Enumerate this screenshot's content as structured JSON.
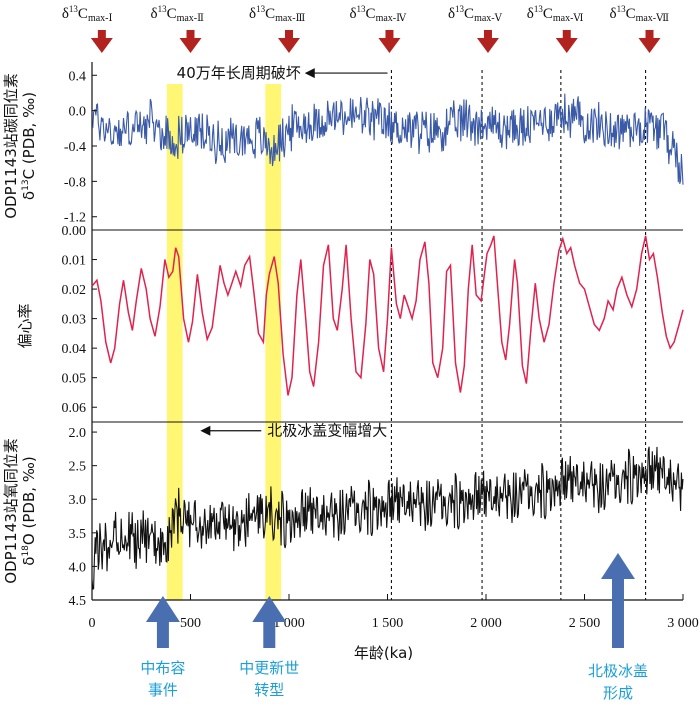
{
  "chart_data": {
    "type": "line",
    "xlabel": "年龄(ka)",
    "xlim": [
      0,
      3000
    ],
    "x_ticks": [
      "0",
      "500",
      "1 000",
      "1 500",
      "2 000",
      "2 500",
      "3 000"
    ],
    "x_tick_values": [
      0,
      500,
      1000,
      1500,
      2000,
      2500,
      3000
    ],
    "delta13C_max_markers": [
      {
        "prefix": "δ",
        "sup": "13",
        "base": "C",
        "sub": "max-Ⅰ",
        "x": 50
      },
      {
        "prefix": "δ",
        "sup": "13",
        "base": "C",
        "sub": "max-Ⅱ",
        "x": 500
      },
      {
        "prefix": "δ",
        "sup": "13",
        "base": "C",
        "sub": "max-Ⅲ",
        "x": 1000
      },
      {
        "prefix": "δ",
        "sup": "13",
        "base": "C",
        "sub": "max-Ⅳ",
        "x": 1510
      },
      {
        "prefix": "δ",
        "sup": "13",
        "base": "C",
        "sub": "max-Ⅴ",
        "x": 2010
      },
      {
        "prefix": "δ",
        "sup": "13",
        "base": "C",
        "sub": "max-Ⅵ",
        "x": 2410
      },
      {
        "prefix": "δ",
        "sup": "13",
        "base": "C",
        "sub": "max-Ⅶ",
        "x": 2830
      }
    ],
    "dashed_lines_x": [
      1520,
      1980,
      2380,
      2810
    ],
    "highlight_bands": [
      [
        380,
        460
      ],
      [
        880,
        960
      ]
    ],
    "panels": [
      {
        "id": "d13C",
        "ylabel_line1": "ODP1143站碳同位素",
        "ylabel_line2_prefix": "δ",
        "ylabel_line2_sup": "13",
        "ylabel_line2_rest": "C (PDB, ‰)",
        "ylim": [
          0.55,
          -1.35
        ],
        "y_ticks": [
          "0.4",
          "0.0",
          "-0.4",
          "-0.8",
          "-1.2"
        ],
        "y_tick_values": [
          0.4,
          0.0,
          -0.4,
          -0.8,
          -1.2
        ],
        "color": "#3a5aa8",
        "annotation": "40万年长周期破坏",
        "annotation_arrow_from_x": 1500,
        "annotation_arrow_to_x": 1080,
        "annotation_y": 0.47,
        "series_name": "",
        "anchors": [
          [
            0,
            -0.05
          ],
          [
            100,
            -0.25
          ],
          [
            200,
            -0.2
          ],
          [
            300,
            -0.15
          ],
          [
            380,
            -0.3
          ],
          [
            420,
            -0.35
          ],
          [
            460,
            -0.25
          ],
          [
            550,
            -0.25
          ],
          [
            650,
            -0.35
          ],
          [
            750,
            -0.3
          ],
          [
            850,
            -0.3
          ],
          [
            920,
            -0.45
          ],
          [
            1000,
            -0.2
          ],
          [
            1100,
            -0.15
          ],
          [
            1200,
            -0.1
          ],
          [
            1300,
            -0.05
          ],
          [
            1400,
            -0.1
          ],
          [
            1500,
            -0.15
          ],
          [
            1600,
            -0.2
          ],
          [
            1700,
            -0.25
          ],
          [
            1800,
            -0.2
          ],
          [
            1900,
            -0.1
          ],
          [
            2000,
            -0.15
          ],
          [
            2100,
            -0.2
          ],
          [
            2200,
            -0.2
          ],
          [
            2300,
            -0.1
          ],
          [
            2400,
            -0.05
          ],
          [
            2500,
            -0.1
          ],
          [
            2600,
            -0.2
          ],
          [
            2700,
            -0.2
          ],
          [
            2800,
            -0.15
          ],
          [
            2900,
            -0.2
          ],
          [
            3000,
            -0.7
          ]
        ],
        "amplitude": 0.22
      },
      {
        "id": "ecc",
        "ylabel_line1": "偏心率",
        "ylim": [
          0.0,
          0.065
        ],
        "y_ticks": [
          "0.06",
          "0.05",
          "0.04",
          "0.03",
          "0.02",
          "0.01",
          "0.00"
        ],
        "y_tick_values": [
          0.06,
          0.05,
          0.04,
          0.03,
          0.02,
          0.01,
          0.0
        ],
        "color": "#e0234e",
        "series_name": "",
        "points": [
          [
            0,
            0.019
          ],
          [
            25,
            0.017
          ],
          [
            45,
            0.024
          ],
          [
            70,
            0.038
          ],
          [
            95,
            0.045
          ],
          [
            115,
            0.04
          ],
          [
            140,
            0.025
          ],
          [
            160,
            0.017
          ],
          [
            185,
            0.028
          ],
          [
            205,
            0.034
          ],
          [
            225,
            0.024
          ],
          [
            250,
            0.013
          ],
          [
            275,
            0.02
          ],
          [
            295,
            0.03
          ],
          [
            320,
            0.036
          ],
          [
            345,
            0.026
          ],
          [
            370,
            0.01
          ],
          [
            390,
            0.016
          ],
          [
            410,
            0.014
          ],
          [
            425,
            0.006
          ],
          [
            440,
            0.009
          ],
          [
            465,
            0.03
          ],
          [
            490,
            0.038
          ],
          [
            510,
            0.031
          ],
          [
            535,
            0.015
          ],
          [
            560,
            0.028
          ],
          [
            585,
            0.037
          ],
          [
            610,
            0.033
          ],
          [
            635,
            0.02
          ],
          [
            650,
            0.012
          ],
          [
            670,
            0.018
          ],
          [
            690,
            0.022
          ],
          [
            710,
            0.018
          ],
          [
            730,
            0.014
          ],
          [
            755,
            0.019
          ],
          [
            775,
            0.012
          ],
          [
            800,
            0.009
          ],
          [
            820,
            0.02
          ],
          [
            845,
            0.035
          ],
          [
            870,
            0.038
          ],
          [
            885,
            0.022
          ],
          [
            900,
            0.015
          ],
          [
            925,
            0.009
          ],
          [
            945,
            0.018
          ],
          [
            970,
            0.042
          ],
          [
            995,
            0.056
          ],
          [
            1015,
            0.05
          ],
          [
            1040,
            0.022
          ],
          [
            1060,
            0.01
          ],
          [
            1085,
            0.03
          ],
          [
            1105,
            0.048
          ],
          [
            1125,
            0.053
          ],
          [
            1150,
            0.038
          ],
          [
            1175,
            0.012
          ],
          [
            1200,
            0.005
          ],
          [
            1225,
            0.03
          ],
          [
            1245,
            0.034
          ],
          [
            1270,
            0.02
          ],
          [
            1290,
            0.005
          ],
          [
            1315,
            0.03
          ],
          [
            1340,
            0.048
          ],
          [
            1365,
            0.05
          ],
          [
            1390,
            0.032
          ],
          [
            1410,
            0.01
          ],
          [
            1430,
            0.015
          ],
          [
            1455,
            0.04
          ],
          [
            1480,
            0.048
          ],
          [
            1500,
            0.03
          ],
          [
            1520,
            0.006
          ],
          [
            1545,
            0.025
          ],
          [
            1565,
            0.03
          ],
          [
            1585,
            0.022
          ],
          [
            1605,
            0.026
          ],
          [
            1625,
            0.03
          ],
          [
            1645,
            0.024
          ],
          [
            1665,
            0.01
          ],
          [
            1690,
            0.004
          ],
          [
            1710,
            0.018
          ],
          [
            1730,
            0.045
          ],
          [
            1755,
            0.05
          ],
          [
            1780,
            0.04
          ],
          [
            1800,
            0.014
          ],
          [
            1820,
            0.012
          ],
          [
            1845,
            0.045
          ],
          [
            1870,
            0.055
          ],
          [
            1890,
            0.046
          ],
          [
            1910,
            0.02
          ],
          [
            1930,
            0.005
          ],
          [
            1950,
            0.022
          ],
          [
            1975,
            0.024
          ],
          [
            1990,
            0.016
          ],
          [
            2005,
            0.008
          ],
          [
            2025,
            0.005
          ],
          [
            2040,
            0.002
          ],
          [
            2060,
            0.02
          ],
          [
            2080,
            0.038
          ],
          [
            2100,
            0.044
          ],
          [
            2120,
            0.032
          ],
          [
            2145,
            0.01
          ],
          [
            2160,
            0.018
          ],
          [
            2185,
            0.046
          ],
          [
            2205,
            0.052
          ],
          [
            2230,
            0.032
          ],
          [
            2250,
            0.018
          ],
          [
            2270,
            0.03
          ],
          [
            2295,
            0.038
          ],
          [
            2320,
            0.032
          ],
          [
            2345,
            0.018
          ],
          [
            2370,
            0.007
          ],
          [
            2390,
            0.003
          ],
          [
            2410,
            0.008
          ],
          [
            2430,
            0.006
          ],
          [
            2450,
            0.012
          ],
          [
            2475,
            0.018
          ],
          [
            2500,
            0.02
          ],
          [
            2525,
            0.026
          ],
          [
            2550,
            0.032
          ],
          [
            2575,
            0.034
          ],
          [
            2600,
            0.03
          ],
          [
            2620,
            0.024
          ],
          [
            2645,
            0.027
          ],
          [
            2665,
            0.02
          ],
          [
            2690,
            0.016
          ],
          [
            2715,
            0.022
          ],
          [
            2740,
            0.026
          ],
          [
            2765,
            0.02
          ],
          [
            2790,
            0.008
          ],
          [
            2810,
            0.002
          ],
          [
            2830,
            0.01
          ],
          [
            2850,
            0.008
          ],
          [
            2870,
            0.016
          ],
          [
            2895,
            0.028
          ],
          [
            2915,
            0.036
          ],
          [
            2935,
            0.04
          ],
          [
            2955,
            0.038
          ],
          [
            2980,
            0.032
          ],
          [
            3000,
            0.027
          ]
        ]
      },
      {
        "id": "d18O",
        "ylabel_line1": "ODP1143站氧同位素",
        "ylabel_line2_prefix": "δ",
        "ylabel_line2_sup": "18",
        "ylabel_line2_rest": "O (PDB, ‰)",
        "ylim": [
          1.85,
          4.5
        ],
        "y_ticks": [
          "2.0",
          "2.5",
          "3.0",
          "3.5",
          "4.0",
          "4.5"
        ],
        "y_tick_values": [
          2.0,
          2.5,
          3.0,
          3.5,
          4.0,
          4.5
        ],
        "color": "#111111",
        "annotation": "北极冰盖变幅增大",
        "annotation_arrow_from_x": 910,
        "annotation_arrow_to_x": 550,
        "annotation_y": 1.95,
        "series_name": "",
        "anchors": [
          [
            0,
            3.9
          ],
          [
            100,
            3.5
          ],
          [
            200,
            3.6
          ],
          [
            300,
            3.6
          ],
          [
            400,
            3.5
          ],
          [
            440,
            3.2
          ],
          [
            500,
            3.4
          ],
          [
            600,
            3.4
          ],
          [
            700,
            3.4
          ],
          [
            800,
            3.3
          ],
          [
            900,
            3.2
          ],
          [
            1000,
            3.3
          ],
          [
            1100,
            3.2
          ],
          [
            1200,
            3.2
          ],
          [
            1300,
            3.1
          ],
          [
            1400,
            3.1
          ],
          [
            1500,
            3.1
          ],
          [
            1600,
            3.0
          ],
          [
            1700,
            3.0
          ],
          [
            1800,
            3.0
          ],
          [
            1900,
            3.0
          ],
          [
            2000,
            2.95
          ],
          [
            2100,
            2.9
          ],
          [
            2200,
            2.85
          ],
          [
            2300,
            2.85
          ],
          [
            2400,
            2.75
          ],
          [
            2500,
            2.7
          ],
          [
            2600,
            2.75
          ],
          [
            2700,
            2.65
          ],
          [
            2800,
            2.6
          ],
          [
            2900,
            2.6
          ],
          [
            3000,
            2.8
          ]
        ],
        "amplitude": 0.38
      }
    ],
    "events": [
      {
        "label_line1": "中布容",
        "label_line2": "事件",
        "x": 360
      },
      {
        "label_line1": "中更新世",
        "label_line2": "转型",
        "x": 900
      },
      {
        "label_line1": "北极冰盖",
        "label_line2": "形成",
        "x": 2670
      }
    ]
  }
}
